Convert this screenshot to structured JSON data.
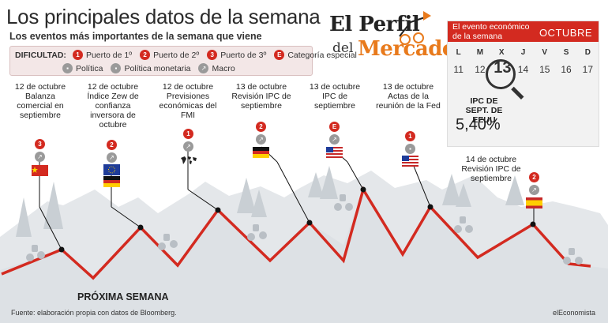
{
  "header": {
    "title": "Los principales datos de la semana",
    "subtitle": "Los eventos más importantes de la semana que viene"
  },
  "legend": {
    "label": "DIFICULTAD:",
    "difficulty": [
      {
        "badge": "1",
        "text": "Puerto de 1º"
      },
      {
        "badge": "2",
        "text": "Puerto de 2º"
      },
      {
        "badge": "3",
        "text": "Puerto de 3º"
      },
      {
        "badge": "E",
        "text": "Categoría especial"
      }
    ],
    "types": [
      {
        "icon": "politica-icon",
        "text": "Política"
      },
      {
        "icon": "politica-monetaria-icon",
        "text": "Política monetaria"
      },
      {
        "icon": "macro-icon",
        "text": "Macro"
      }
    ]
  },
  "brand": {
    "line1": "El Perfil",
    "del": "del",
    "line2": "Mercado",
    "accent": "#e87a1c"
  },
  "calendar": {
    "header_label": "El evento económico de la semana",
    "month": "OCTUBRE",
    "days": [
      "L",
      "M",
      "X",
      "J",
      "V",
      "S",
      "D"
    ],
    "dates": [
      "11",
      "12",
      "13",
      "14",
      "15",
      "16",
      "17"
    ],
    "highlight_date": "13",
    "indicator_label": "IPC DE SEPT. DE EEUU",
    "indicator_value": "5,40%"
  },
  "events": [
    {
      "date": "12 de octubre",
      "text": "Balanza comercial en septiembre",
      "badge": "3",
      "type": "macro-icon",
      "flag": "china-flag"
    },
    {
      "date": "12 de octubre",
      "text": "Índice Zew de confianza inversora de octubre",
      "badge": "2",
      "type": "macro-icon",
      "flag": "eu-germany-flag"
    },
    {
      "date": "12 de octubre",
      "text": "Previsiones económicas del FMI",
      "badge": "1",
      "type": "macro-icon",
      "flag": "world-map-icon"
    },
    {
      "date": "13 de octubre",
      "text": "Revisión IPC de septiembre",
      "badge": "2",
      "type": "macro-icon",
      "flag": "germany-flag"
    },
    {
      "date": "13 de octubre",
      "text": "IPC de septiembre",
      "badge": "E",
      "type": "macro-icon",
      "flag": "usa-flag"
    },
    {
      "date": "13 de octubre",
      "text": "Actas de la reunión de la Fed",
      "badge": "1",
      "type": "politica-monetaria-icon",
      "flag": "usa-flag"
    },
    {
      "date": "14 de octubre",
      "text": "Revisión IPC de septiembre",
      "badge": "2",
      "type": "macro-icon",
      "flag": "spain-flag"
    }
  ],
  "footer": {
    "week_label": "PRÓXIMA SEMANA",
    "source": "Fuente: elaboración propia con datos de Bloomberg.",
    "credit": "elEconomista"
  },
  "colors": {
    "route": "#d32a20",
    "mountain": "#dfe3e6",
    "badge": "#d32a20"
  }
}
